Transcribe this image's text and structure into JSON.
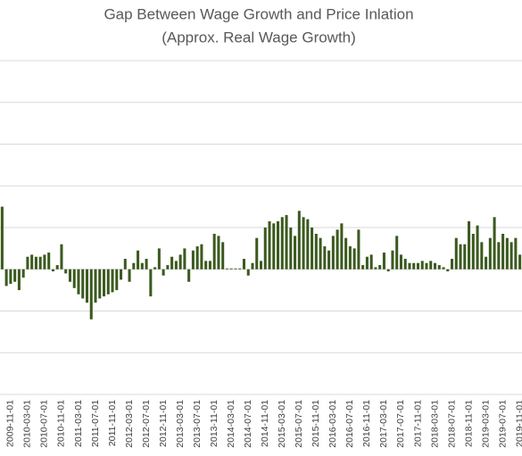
{
  "chart_data": {
    "type": "bar",
    "title": [
      "Gap Between Wage Growth and Price Inlation",
      "(Approx. Real Wage Growth)"
    ],
    "categories": [
      null,
      null,
      "2009-11-01",
      null,
      null,
      null,
      "2010-03-01",
      null,
      null,
      null,
      "2010-07-01",
      null,
      null,
      null,
      "2010-11-01",
      null,
      null,
      null,
      "2011-03-01",
      null,
      null,
      null,
      "2011-07-01",
      null,
      null,
      null,
      "2011-11-01",
      null,
      null,
      null,
      "2012-03-01",
      null,
      null,
      null,
      "2012-07-01",
      null,
      null,
      null,
      "2012-11-01",
      null,
      null,
      null,
      "2013-03-01",
      null,
      null,
      null,
      "2013-07-01",
      null,
      null,
      null,
      "2013-11-01",
      null,
      null,
      null,
      "2014-03-01",
      null,
      null,
      null,
      "2014-07-01",
      null,
      null,
      null,
      "2014-11-01",
      null,
      null,
      null,
      "2015-03-01",
      null,
      null,
      null,
      "2015-07-01",
      null,
      null,
      null,
      "2015-11-01",
      null,
      null,
      null,
      "2016-03-01",
      null,
      null,
      null,
      "2016-07-01",
      null,
      null,
      null,
      "2016-11-01",
      null,
      null,
      null,
      "2017-03-01",
      null,
      null,
      null,
      "2017-07-01",
      null,
      null,
      null,
      "2017-11-01",
      null,
      null,
      null,
      "2018-03-01",
      null,
      null,
      null,
      "2018-07-01",
      null,
      null,
      null,
      "2018-11-01",
      null,
      null,
      null,
      "2019-03-01",
      null,
      null,
      null,
      "2019-07-01",
      null,
      null,
      null,
      "2019-11-01"
    ],
    "values": [
      1.5,
      -0.4,
      -0.35,
      -0.3,
      -0.5,
      -0.2,
      0.3,
      0.35,
      0.3,
      0.3,
      0.35,
      0.4,
      -0.05,
      0.1,
      0.6,
      -0.1,
      -0.3,
      -0.45,
      -0.6,
      -0.7,
      -0.8,
      -1.2,
      -0.8,
      -0.7,
      -0.65,
      -0.6,
      -0.55,
      -0.5,
      -0.25,
      0.25,
      -0.3,
      0.15,
      0.45,
      0.15,
      0.25,
      -0.65,
      0.05,
      0.5,
      -0.15,
      0.1,
      0.3,
      0.2,
      0.35,
      0.5,
      -0.3,
      0.45,
      0.55,
      0.6,
      0.2,
      0.2,
      0.85,
      0.8,
      0.65,
      0.02,
      0.02,
      0.02,
      0.02,
      0.25,
      -0.15,
      0.15,
      0.75,
      0.2,
      1.0,
      1.15,
      1.1,
      1.15,
      1.25,
      1.3,
      1.0,
      0.8,
      1.4,
      1.25,
      1.2,
      1.0,
      0.85,
      0.75,
      0.55,
      0.45,
      0.8,
      0.95,
      1.1,
      0.75,
      0.55,
      0.5,
      0.95,
      0.1,
      0.3,
      0.35,
      0.05,
      0.1,
      0.4,
      -0.05,
      0.45,
      0.8,
      0.35,
      0.25,
      0.15,
      0.15,
      0.15,
      0.2,
      0.15,
      0.2,
      0.15,
      0.1,
      0.05,
      -0.05,
      0.25,
      0.75,
      0.6,
      0.6,
      1.15,
      0.85,
      1.05,
      0.65,
      0.3,
      0.75,
      1.25,
      0.65,
      0.85,
      0.75,
      0.65,
      0.75,
      0.35
    ],
    "color": "#3b5a1f",
    "ylim": [
      -3,
      5
    ],
    "yticks": [
      -3,
      -2,
      -1,
      0,
      1,
      2,
      3,
      4,
      5
    ],
    "grid": true
  }
}
